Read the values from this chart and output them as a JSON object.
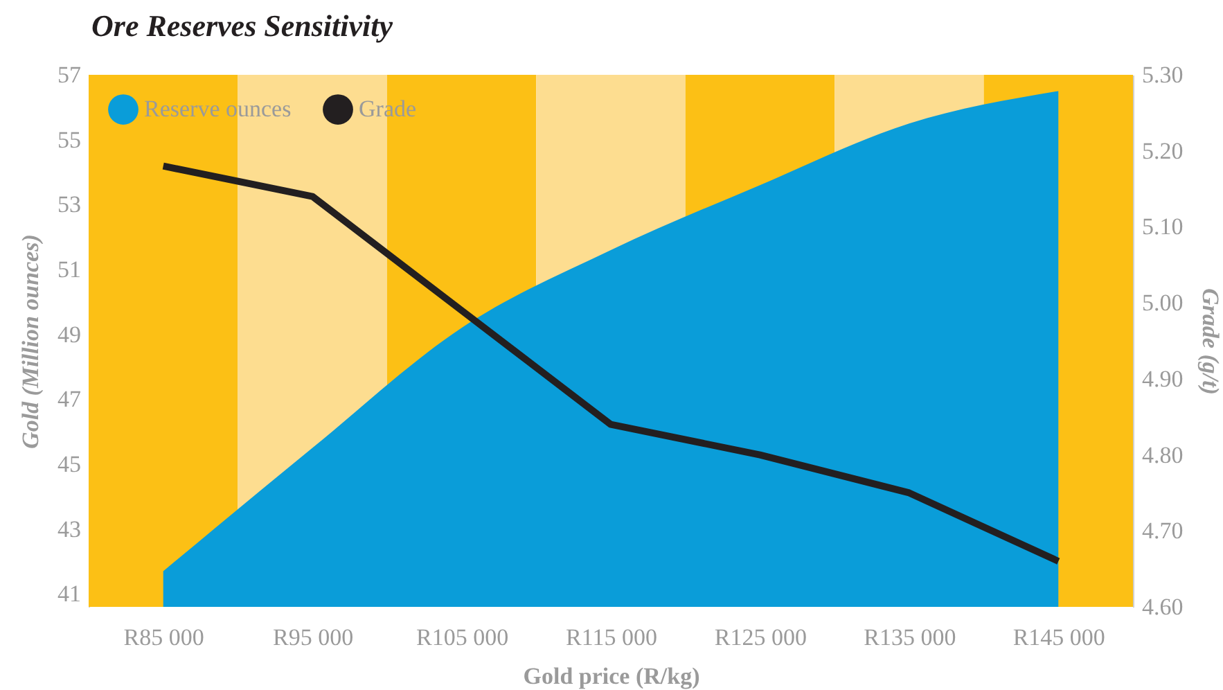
{
  "chart_data": {
    "type": "area",
    "title": "Ore Reserves Sensitivity",
    "xlabel": "Gold price (R/kg)",
    "ylabel": "Gold (Million ounces)",
    "y2label": "Grade (g/t)",
    "categories": [
      "R85 000",
      "R95 000",
      "R105 000",
      "R115 000",
      "R125 000",
      "R135 000",
      "R145 000"
    ],
    "series": [
      {
        "name": "Reserve ounces",
        "type": "area",
        "color": "#0a9dd9",
        "values": [
          41.7,
          45.5,
          49.2,
          51.6,
          53.6,
          55.5,
          56.5
        ]
      },
      {
        "name": "Grade",
        "type": "line",
        "axis": "y2",
        "color": "#231f20",
        "values": [
          5.18,
          5.14,
          4.99,
          4.84,
          4.8,
          4.75,
          4.66
        ]
      }
    ],
    "ylim": [
      40.6,
      57
    ],
    "yticks": [
      41,
      43,
      45,
      47,
      49,
      51,
      53,
      55,
      57
    ],
    "y2lim": [
      4.6,
      5.3
    ],
    "y2ticks": [
      {
        "value": 4.6,
        "label": "4.60"
      },
      {
        "value": 4.7,
        "label": "4.70"
      },
      {
        "value": 4.8,
        "label": "4.80"
      },
      {
        "value": 4.9,
        "label": "4.90"
      },
      {
        "value": 5.0,
        "label": "5.00"
      },
      {
        "value": 5.1,
        "label": "5.10"
      },
      {
        "value": 5.2,
        "label": "5.20"
      },
      {
        "value": 5.3,
        "label": "5.30"
      }
    ],
    "bands": [
      {
        "axis": "x",
        "from": "R85 000",
        "to": "R85 000",
        "color": "#fcc015"
      },
      {
        "axis": "x",
        "from": "R95 000",
        "to": "R95 000",
        "color": "#fddd90"
      },
      {
        "axis": "x",
        "from": "R105 000",
        "to": "R105 000",
        "color": "#fcc015"
      },
      {
        "axis": "x",
        "from": "R115 000",
        "to": "R115 000",
        "color": "#fddd90"
      },
      {
        "axis": "x",
        "from": "R125 000",
        "to": "R125 000",
        "color": "#fcc015"
      },
      {
        "axis": "x",
        "from": "R135 000",
        "to": "R135 000",
        "color": "#fddd90"
      },
      {
        "axis": "x",
        "from": "R145 000",
        "to": "R145 000",
        "color": "#fcc015"
      }
    ],
    "legend": "top left",
    "grid": false,
    "line_style": "solid",
    "marker": "none"
  }
}
